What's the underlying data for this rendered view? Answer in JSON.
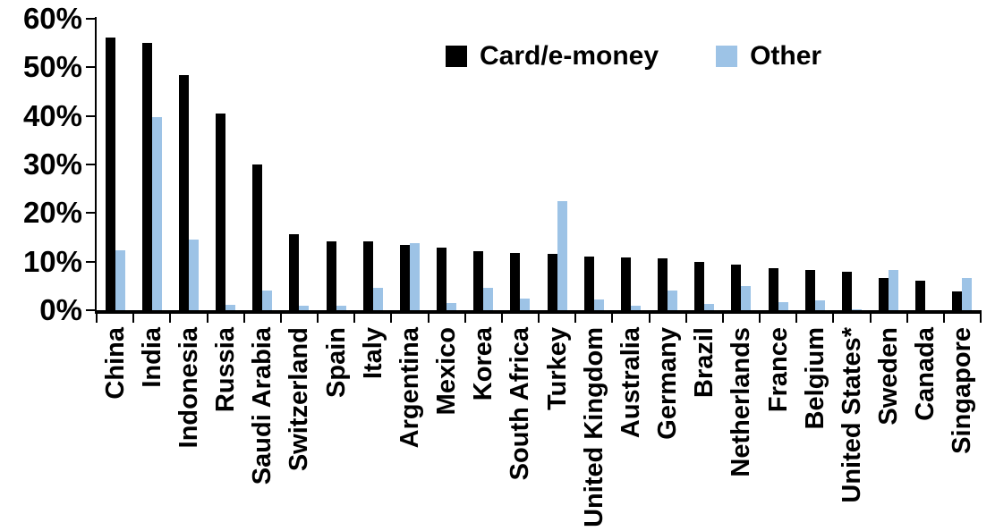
{
  "chart_data": {
    "type": "bar",
    "title": "",
    "xlabel": "",
    "ylabel": "",
    "grid": false,
    "legend_position": "top-center",
    "categories": [
      "China",
      "India",
      "Indonesia",
      "Russia",
      "Saudi Arabia",
      "Switzerland",
      "Spain",
      "Italy",
      "Argentina",
      "Mexico",
      "Korea",
      "South Africa",
      "Turkey",
      "United Kingdom",
      "Australia",
      "Germany",
      "Brazil",
      "Netherlands",
      "France",
      "Belgium",
      "United States*",
      "Sweden",
      "Canada",
      "Singapore"
    ],
    "series": [
      {
        "name": "Card/e-money",
        "color": "#000000",
        "values": [
          56.2,
          55.0,
          48.4,
          40.5,
          30.0,
          15.6,
          14.2,
          14.1,
          13.4,
          12.9,
          12.2,
          11.8,
          11.6,
          11.0,
          10.8,
          10.6,
          10.0,
          9.3,
          8.7,
          8.2,
          7.9,
          6.6,
          6.1,
          3.9
        ]
      },
      {
        "name": "Other",
        "color": "#9dc3e6",
        "values": [
          12.4,
          39.8,
          14.6,
          1.1,
          4.0,
          0.9,
          1.0,
          4.6,
          13.8,
          1.4,
          4.6,
          2.4,
          22.5,
          2.3,
          1.0,
          4.0,
          1.2,
          4.9,
          1.6,
          2.1,
          0.2,
          8.2,
          0.0,
          6.7
        ]
      }
    ],
    "y_axis": {
      "ylim": [
        0,
        60
      ],
      "tick_values": [
        0,
        10,
        20,
        30,
        40,
        50,
        60
      ],
      "tick_labels": [
        "0%",
        "10%",
        "20%",
        "30%",
        "40%",
        "50%",
        "60%"
      ]
    }
  }
}
